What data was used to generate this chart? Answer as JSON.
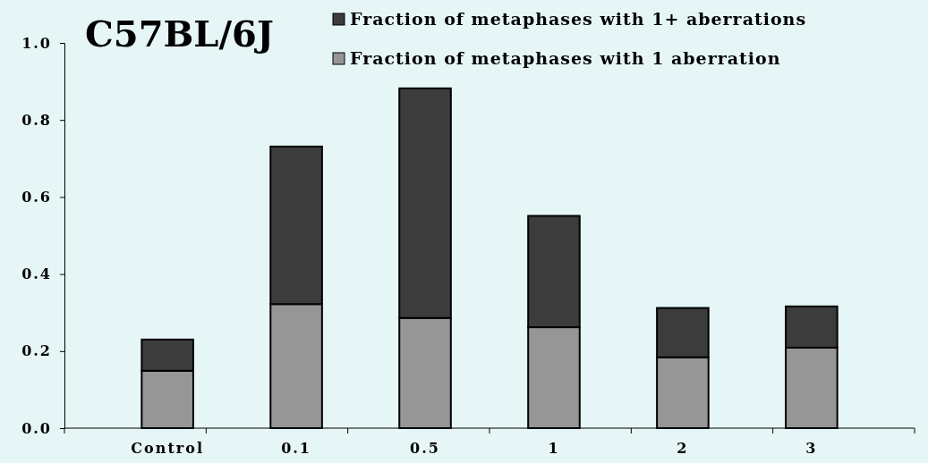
{
  "chart_data": {
    "type": "bar",
    "title": "C57BL/6J",
    "stacked": true,
    "categories": [
      "Control",
      "0.1",
      "0.5",
      "1",
      "2",
      "3"
    ],
    "series": [
      {
        "name": "Fraction of metaphases with 1 aberration",
        "color": "#969696",
        "values": [
          0.149,
          0.322,
          0.286,
          0.262,
          0.184,
          0.209
        ]
      },
      {
        "name": "Fraction of metaphases with 1+ aberrations",
        "color": "#3c3c3c",
        "values": [
          0.081,
          0.409,
          0.596,
          0.289,
          0.128,
          0.107
        ]
      }
    ],
    "ylim": [
      0,
      1
    ],
    "yticks": [
      {
        "value": 0,
        "label": "0.0"
      },
      {
        "value": 0.2,
        "label": "0.2"
      },
      {
        "value": 0.4,
        "label": "0.4"
      },
      {
        "value": 0.6,
        "label": "0.6"
      },
      {
        "value": 0.8,
        "label": "0.8"
      },
      {
        "value": 1,
        "label": "1.0"
      }
    ],
    "grid": false,
    "legend": "top"
  }
}
